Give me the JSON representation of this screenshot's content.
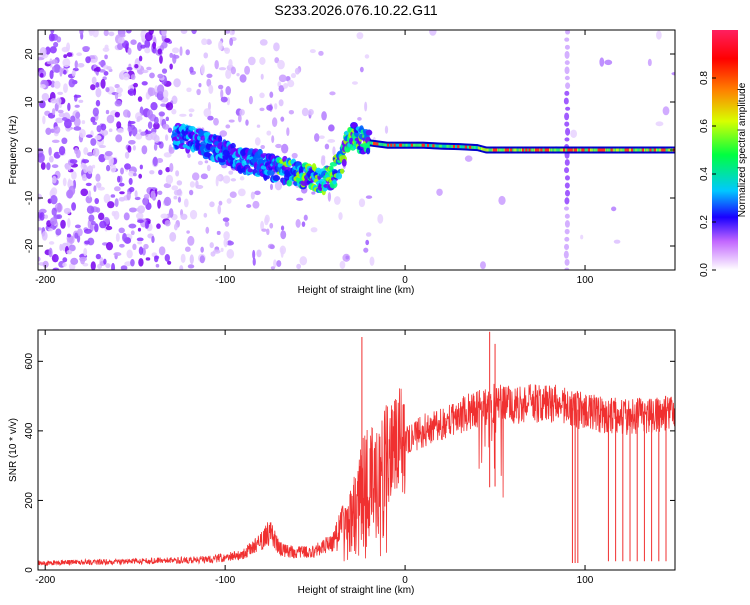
{
  "title": "S233.2026.076.10.22.G11",
  "chart_data": [
    {
      "type": "heatmap",
      "xlabel": "Height of straight line (km)",
      "ylabel": "Frequency (Hz)",
      "xlim": [
        -204,
        150
      ],
      "ylim": [
        -25,
        25
      ],
      "xticks": [
        -200,
        -100,
        0,
        100
      ],
      "xtick_labels": [
        "-200",
        "-100",
        "0",
        "100"
      ],
      "yticks": [
        -20,
        -10,
        0,
        10,
        20
      ],
      "ytick_labels": [
        "-20",
        "-10",
        "0",
        "10",
        "20"
      ],
      "colorbar": {
        "label": "Normalized spectral amplitude",
        "range": [
          0,
          1
        ],
        "ticks": [
          0,
          0.2,
          0.4,
          0.6,
          0.8
        ],
        "tick_labels": [
          "0.0",
          "0.2",
          "0.4",
          "0.6",
          "0.8"
        ]
      },
      "dominant_frequency_track": {
        "x": [
          -125,
          -110,
          -100,
          -90,
          -80,
          -70,
          -60,
          -55,
          -50,
          -45,
          -40,
          -35,
          -32,
          -28,
          -25,
          -20,
          -10,
          0,
          10,
          20,
          30,
          40,
          45,
          60,
          80,
          90,
          100,
          120,
          150
        ],
        "y": [
          3,
          1,
          -0.5,
          -2,
          -3,
          -4,
          -5,
          -5.5,
          -6,
          -6.5,
          -5,
          -2,
          2,
          3,
          2,
          1.5,
          1,
          1,
          1,
          0.8,
          0.7,
          0.5,
          0,
          0,
          0,
          0,
          0,
          0,
          0
        ]
      },
      "grid": false
    },
    {
      "type": "line",
      "xlabel": "Height of straight line (km)",
      "ylabel": "SNR (10 * v/v)",
      "xlim": [
        -204,
        150
      ],
      "ylim": [
        0,
        690
      ],
      "xticks": [
        -200,
        -100,
        0,
        100
      ],
      "xtick_labels": [
        "-200",
        "-100",
        "0",
        "100"
      ],
      "yticks": [
        0,
        200,
        400,
        600
      ],
      "ytick_labels": [
        "0",
        "200",
        "400",
        "600"
      ],
      "color": "#f03030",
      "envelope": {
        "x": [
          -204,
          -150,
          -110,
          -90,
          -80,
          -75,
          -70,
          -60,
          -50,
          -40,
          -30,
          -25,
          -20,
          -15,
          -10,
          0,
          10,
          20,
          30,
          40,
          50,
          60,
          80,
          90,
          100,
          120,
          150
        ],
        "y": [
          20,
          25,
          30,
          45,
          80,
          110,
          60,
          50,
          55,
          80,
          170,
          260,
          300,
          280,
          340,
          370,
          400,
          420,
          440,
          465,
          480,
          475,
          480,
          470,
          455,
          440,
          450
        ]
      },
      "spikes": [
        {
          "x": -24,
          "y": 670
        },
        {
          "x": 47,
          "y": 685
        },
        {
          "x": 50,
          "y": 650
        }
      ],
      "dropouts": [
        {
          "x": 93,
          "y": 20
        },
        {
          "x": 94.5,
          "y": 20
        },
        {
          "x": 96,
          "y": 20
        },
        {
          "x": 113,
          "y": 25
        },
        {
          "x": 117,
          "y": 25
        },
        {
          "x": 121,
          "y": 25
        },
        {
          "x": 125,
          "y": 25
        },
        {
          "x": 129,
          "y": 25
        },
        {
          "x": 133,
          "y": 25
        },
        {
          "x": 137,
          "y": 25
        },
        {
          "x": 141,
          "y": 25
        },
        {
          "x": 145,
          "y": 25
        }
      ],
      "grid": false
    }
  ]
}
